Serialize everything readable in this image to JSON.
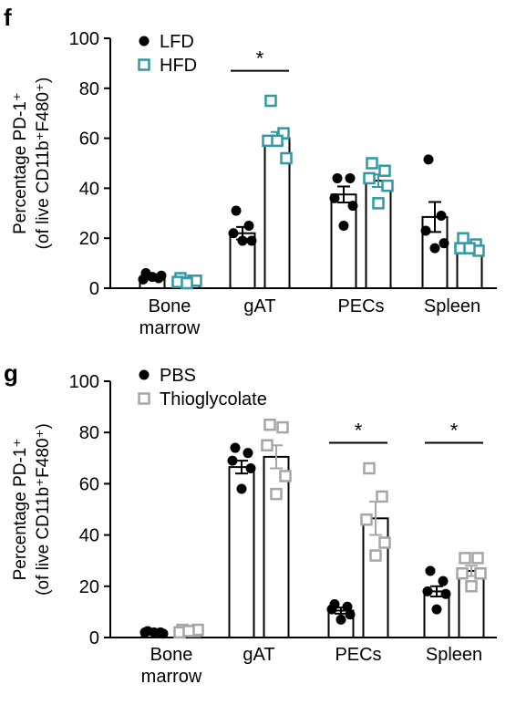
{
  "chart_data": [
    {
      "panel": "f",
      "type": "bar",
      "ylabel": [
        "Percentage PD-1⁺",
        "(of live CD11b⁺F480⁺)"
      ],
      "ylim": [
        0,
        100
      ],
      "yticks": [
        "0",
        "20",
        "40",
        "60",
        "80",
        "100"
      ],
      "categories": [
        [
          "Bone",
          "marrow"
        ],
        [
          "gAT"
        ],
        [
          "PECs"
        ],
        [
          "Spleen"
        ]
      ],
      "legend_placement": "top-left",
      "series": [
        {
          "name": "LFD",
          "color": "#000000",
          "marker": "filled-circle",
          "values": [
            4.5,
            22.0,
            37.5,
            28.5
          ],
          "sem": [
            1.0,
            2.5,
            3.2,
            6.0
          ],
          "points": [
            [
              6,
              4,
              3.5,
              5,
              4.5
            ],
            [
              31,
              25,
              22,
              19,
              19
            ],
            [
              44,
              44,
              36,
              33,
              25
            ],
            [
              51.5,
              29,
              23,
              18,
              16
            ]
          ]
        },
        {
          "name": "HFD",
          "color": "#2f9aa3",
          "marker": "open-square",
          "values": [
            3.0,
            60.0,
            43.0,
            16.5
          ],
          "sem": [
            0.8,
            2.5,
            2.5,
            1.5
          ],
          "points": [
            [
              4,
              3,
              2.5,
              3,
              2
            ],
            [
              75,
              62,
              59,
              52,
              59
            ],
            [
              50,
              47,
              44,
              41,
              34
            ],
            [
              20,
              17.5,
              16,
              15,
              16
            ]
          ]
        }
      ],
      "significance": [
        {
          "category": 1,
          "label": "*",
          "y": 87
        }
      ]
    },
    {
      "panel": "g",
      "type": "bar",
      "ylabel": [
        "Percentage PD-1⁺",
        "(of live CD11b⁺F480⁺)"
      ],
      "ylim": [
        0,
        100
      ],
      "yticks": [
        "0",
        "20",
        "40",
        "60",
        "80",
        "100"
      ],
      "categories": [
        [
          "Bone",
          "marrow"
        ],
        [
          "gAT"
        ],
        [
          "PECs"
        ],
        [
          "Spleen"
        ]
      ],
      "legend_placement": "top-left",
      "series": [
        {
          "name": "PBS",
          "color": "#000000",
          "marker": "filled-circle",
          "values": [
            2.0,
            66.5,
            10.5,
            18.0
          ],
          "sem": [
            0.3,
            2.5,
            1.2,
            2.0
          ],
          "points": [
            [
              2.5,
              2,
              2,
              1.5,
              2
            ],
            [
              74,
              72,
              69,
              66,
              58
            ],
            [
              13,
              12,
              11,
              9,
              7
            ],
            [
              26,
              22,
              18,
              17,
              11
            ]
          ]
        },
        {
          "name": "Thioglycolate",
          "color": "#a6a6a6",
          "marker": "open-square",
          "values": [
            2.5,
            70.5,
            46.5,
            26.0
          ],
          "sem": [
            0.4,
            4.5,
            6.5,
            2.0
          ],
          "points": [
            [
              3,
              2.5,
              2,
              3,
              2.5
            ],
            [
              83,
              82,
              75,
              63,
              56
            ],
            [
              66,
              55,
              46,
              37,
              32
            ],
            [
              31,
              31,
              25,
              25,
              20
            ]
          ]
        }
      ],
      "significance": [
        {
          "category": 2,
          "label": "*",
          "y": 76
        },
        {
          "category": 3,
          "label": "*",
          "y": 76
        }
      ]
    }
  ],
  "panels": {
    "f": {
      "label": "f"
    },
    "g": {
      "label": "g"
    }
  }
}
